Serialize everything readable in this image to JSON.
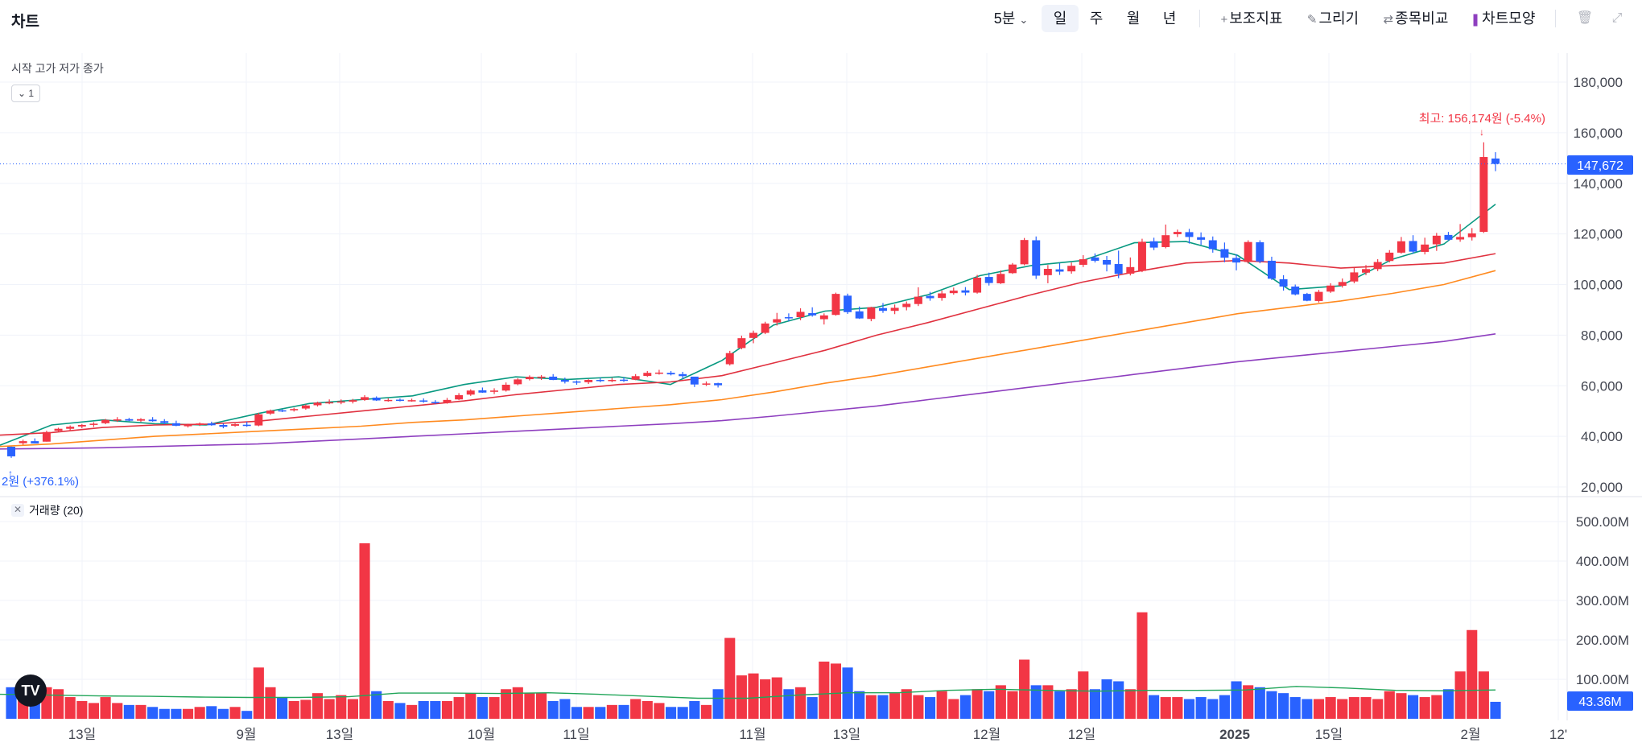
{
  "header": {
    "title": "차트",
    "interval": "5분",
    "periods": [
      "일",
      "주",
      "월",
      "년"
    ],
    "active_period": "일",
    "tools": [
      {
        "icon": "plus-icon",
        "label": "보조지표"
      },
      {
        "icon": "pencil-icon",
        "label": "그리기"
      },
      {
        "icon": "compare-icon",
        "label": "종목비교"
      },
      {
        "icon": "candle-icon",
        "label": "차트모양"
      }
    ],
    "icons": [
      "trash-icon",
      "expand-icon",
      "chevron-down-icon"
    ]
  },
  "legend": {
    "ohlc": "시작 고가 저가 종가",
    "collapse": "1",
    "volume": "거래량",
    "volume_param": "(20)"
  },
  "annotations": {
    "high": "최고: 156,174원 (-5.4%)",
    "low": "2원 (+376.1%)"
  },
  "price_axis": {
    "ticks": [
      "180,000",
      "160,000",
      "140,000",
      "120,000",
      "100,000",
      "80,000",
      "60,000",
      "40,000",
      "20,000"
    ],
    "current_label": "147,672"
  },
  "volume_axis": {
    "ticks": [
      "500.00M",
      "400.00M",
      "300.00M",
      "200.00M",
      "100.00M"
    ],
    "current_label": "43.36M"
  },
  "time_axis": {
    "labels": [
      "13일",
      "9월",
      "13일",
      "10월",
      "11일",
      "11월",
      "13일",
      "12월",
      "12일",
      "2025",
      "15일",
      "2월",
      "12'"
    ]
  },
  "colors": {
    "up": "#f23645",
    "down": "#2962ff",
    "ma5": "#089981",
    "ma20": "#e0313f",
    "ma60": "#ff8a1f",
    "ma120": "#8e3fbf",
    "volume_ma": "#22a65a",
    "accent": "#2962ff"
  },
  "chart_data": {
    "type": "candlestick",
    "y_range": [
      20000,
      190000
    ],
    "volume_range": [
      0,
      540
    ],
    "volume_units": "M",
    "candles": [
      [
        35900,
        36000,
        31500,
        32100,
        80
      ],
      [
        37300,
        38700,
        36700,
        38100,
        75
      ],
      [
        38100,
        39200,
        37200,
        37200,
        60
      ],
      [
        37900,
        42200,
        37900,
        41700,
        80
      ],
      [
        42200,
        43400,
        41900,
        43000,
        75
      ],
      [
        43000,
        44300,
        42100,
        43800,
        55
      ],
      [
        43900,
        44900,
        43200,
        44500,
        45
      ],
      [
        44600,
        45600,
        43700,
        45000,
        40
      ],
      [
        45200,
        46900,
        44800,
        46500,
        55
      ],
      [
        46400,
        47600,
        45700,
        46700,
        40
      ],
      [
        46800,
        47300,
        46000,
        46200,
        35
      ],
      [
        46200,
        47200,
        45700,
        46800,
        35
      ],
      [
        46600,
        47600,
        45800,
        46000,
        30
      ],
      [
        46000,
        46800,
        44800,
        45300,
        25
      ],
      [
        45200,
        46200,
        44000,
        44200,
        25
      ],
      [
        44000,
        45000,
        43500,
        44500,
        25
      ],
      [
        44500,
        45500,
        44100,
        45100,
        30
      ],
      [
        45100,
        45800,
        44200,
        44400,
        32
      ],
      [
        44500,
        45100,
        43200,
        43800,
        25
      ],
      [
        44200,
        45100,
        43800,
        44800,
        30
      ],
      [
        44600,
        45800,
        43800,
        44100,
        20
      ],
      [
        44300,
        49300,
        44000,
        48700,
        130
      ],
      [
        49000,
        50600,
        48500,
        50200,
        80
      ],
      [
        50300,
        50700,
        49600,
        50100,
        55
      ],
      [
        50300,
        51300,
        49800,
        50800,
        45
      ],
      [
        51000,
        52600,
        50500,
        52200,
        48
      ],
      [
        52300,
        53700,
        51800,
        53300,
        65
      ],
      [
        53300,
        54600,
        52700,
        53500,
        50
      ],
      [
        53600,
        54600,
        52700,
        53800,
        60
      ],
      [
        53700,
        54800,
        53000,
        54300,
        50
      ],
      [
        54400,
        56300,
        54000,
        55500,
        445
      ],
      [
        55300,
        55800,
        54000,
        54200,
        70
      ],
      [
        54200,
        55000,
        53700,
        54400,
        45
      ],
      [
        54500,
        55000,
        53800,
        54100,
        40
      ],
      [
        54300,
        54900,
        53700,
        54300,
        35
      ],
      [
        54200,
        55000,
        53300,
        53700,
        45
      ],
      [
        53600,
        54300,
        52800,
        53100,
        45
      ],
      [
        53200,
        55200,
        52900,
        54400,
        45
      ],
      [
        54600,
        57100,
        54300,
        56300,
        55
      ],
      [
        56500,
        58600,
        56000,
        58100,
        65
      ],
      [
        58200,
        59300,
        57200,
        57300,
        55
      ],
      [
        57600,
        59000,
        56700,
        58100,
        55
      ],
      [
        58100,
        61300,
        57700,
        60400,
        75
      ],
      [
        60600,
        63000,
        60200,
        62500,
        80
      ],
      [
        62600,
        64100,
        62100,
        63500,
        65
      ],
      [
        63400,
        64200,
        62300,
        63600,
        65
      ],
      [
        63600,
        64600,
        62200,
        62300,
        45
      ],
      [
        62300,
        63200,
        60900,
        61600,
        50
      ],
      [
        61700,
        62100,
        60400,
        61300,
        30
      ],
      [
        61400,
        62600,
        60700,
        62300,
        30
      ],
      [
        62300,
        63100,
        61400,
        62100,
        30
      ],
      [
        62300,
        63100,
        61400,
        62300,
        35
      ],
      [
        62400,
        63300,
        61500,
        62200,
        35
      ],
      [
        62400,
        64600,
        62200,
        63800,
        50
      ],
      [
        63900,
        65800,
        63500,
        65100,
        45
      ],
      [
        65100,
        66300,
        64400,
        65200,
        40
      ],
      [
        65100,
        65800,
        64100,
        64500,
        30
      ],
      [
        64600,
        65500,
        62700,
        63800,
        30
      ],
      [
        63600,
        62300,
        59500,
        60500,
        45
      ],
      [
        60600,
        61700,
        59900,
        60900,
        35
      ],
      [
        61000,
        61200,
        59300,
        60200,
        75
      ],
      [
        68500,
        73800,
        68000,
        72900,
        205
      ],
      [
        74900,
        79800,
        74400,
        78800,
        110
      ],
      [
        78900,
        81800,
        76800,
        80900,
        115
      ],
      [
        80900,
        85300,
        80400,
        84600,
        100
      ],
      [
        85000,
        88800,
        83800,
        86300,
        105
      ],
      [
        87100,
        88600,
        85500,
        87000,
        75
      ],
      [
        87100,
        90600,
        85900,
        89200,
        80
      ],
      [
        88700,
        91000,
        87300,
        87800,
        55
      ],
      [
        86300,
        88600,
        84200,
        87800,
        145
      ],
      [
        88000,
        96800,
        87700,
        96300,
        140
      ],
      [
        95600,
        96400,
        88400,
        89100,
        130
      ],
      [
        89400,
        91300,
        86400,
        86600,
        70
      ],
      [
        86400,
        91200,
        85500,
        91000,
        60
      ],
      [
        90700,
        92700,
        88800,
        89600,
        60
      ],
      [
        89600,
        92100,
        88300,
        90800,
        65
      ],
      [
        91100,
        93300,
        89800,
        92400,
        75
      ],
      [
        92300,
        98900,
        91500,
        95200,
        60
      ],
      [
        95500,
        97100,
        93600,
        94600,
        55
      ],
      [
        94700,
        97600,
        93600,
        96500,
        70
      ],
      [
        96600,
        98800,
        96000,
        97600,
        50
      ],
      [
        97700,
        99000,
        95700,
        96800,
        60
      ],
      [
        96800,
        103800,
        96400,
        102700,
        75
      ],
      [
        103000,
        104700,
        99600,
        100600,
        70
      ],
      [
        100500,
        105600,
        100200,
        104200,
        85
      ],
      [
        104500,
        108500,
        104200,
        107900,
        70
      ],
      [
        108000,
        118400,
        107600,
        117600,
        150
      ],
      [
        117500,
        119000,
        102200,
        103500,
        85
      ],
      [
        103700,
        107700,
        100500,
        106200,
        85
      ],
      [
        106000,
        108500,
        103800,
        105100,
        70
      ],
      [
        105200,
        108700,
        104300,
        107400,
        75
      ],
      [
        107800,
        111600,
        106900,
        110000,
        120
      ],
      [
        110700,
        112300,
        108700,
        109400,
        75
      ],
      [
        109700,
        111300,
        105200,
        107900,
        100
      ],
      [
        108100,
        113400,
        102500,
        104200,
        95
      ],
      [
        104300,
        110700,
        103600,
        106900,
        75
      ],
      [
        105400,
        118100,
        104900,
        116900,
        270
      ],
      [
        117100,
        118500,
        113600,
        114600,
        60
      ],
      [
        114800,
        123700,
        114300,
        119500,
        55
      ],
      [
        119900,
        121700,
        118800,
        120800,
        55
      ],
      [
        120700,
        122000,
        116200,
        118800,
        50
      ],
      [
        118700,
        120600,
        115700,
        117700,
        55
      ],
      [
        117500,
        119000,
        112600,
        114000,
        50
      ],
      [
        114000,
        116600,
        108800,
        110600,
        60
      ],
      [
        110500,
        112000,
        105600,
        108700,
        95
      ],
      [
        108900,
        117500,
        108300,
        116800,
        85
      ],
      [
        116700,
        117500,
        108400,
        109100,
        80
      ],
      [
        109400,
        111000,
        101800,
        102300,
        70
      ],
      [
        102100,
        103700,
        97600,
        99200,
        65
      ],
      [
        99200,
        100000,
        95700,
        96100,
        55
      ],
      [
        96300,
        96700,
        93400,
        93600,
        50
      ],
      [
        93500,
        97900,
        92900,
        97100,
        50
      ],
      [
        97200,
        100500,
        96700,
        99600,
        55
      ],
      [
        99500,
        102400,
        98800,
        101000,
        50
      ],
      [
        101200,
        106600,
        100500,
        104800,
        55
      ],
      [
        104700,
        107700,
        103700,
        106100,
        55
      ],
      [
        106100,
        110000,
        105300,
        108900,
        50
      ],
      [
        109300,
        113600,
        108800,
        112600,
        70
      ],
      [
        112600,
        118800,
        112200,
        117100,
        65
      ],
      [
        117200,
        119500,
        112200,
        113000,
        60
      ],
      [
        112900,
        118500,
        111900,
        115800,
        55
      ],
      [
        115900,
        120400,
        113300,
        119300,
        60
      ],
      [
        119600,
        120800,
        117300,
        117700,
        75
      ],
      [
        117800,
        123900,
        116900,
        118800,
        120
      ],
      [
        118700,
        122300,
        117400,
        120200,
        225
      ],
      [
        120800,
        156200,
        120400,
        150400,
        120
      ],
      [
        149800,
        152300,
        144800,
        147672,
        43
      ]
    ],
    "moving_averages": [
      {
        "period": 5,
        "y": [
          36500,
          44500,
          46500,
          45000,
          44500,
          49000,
          53000,
          54500,
          56000,
          60500,
          63500,
          62500,
          63500,
          60500,
          70000,
          84000,
          89500,
          91000,
          96000,
          103500,
          107500,
          109500,
          116500,
          117000,
          111500,
          98000,
          99500,
          110000,
          116000,
          131700
        ]
      },
      {
        "period": 20,
        "y": [
          40500,
          41500,
          43500,
          44500,
          44800,
          46000,
          48000,
          50000,
          52000,
          54000,
          56500,
          58500,
          60500,
          61500,
          64000,
          69000,
          74000,
          80000,
          85000,
          90500,
          96000,
          101000,
          105000,
          108500,
          109500,
          108500,
          106500,
          107500,
          108500,
          112200
        ]
      },
      {
        "period": 60,
        "y": [
          36000,
          37000,
          38500,
          40000,
          41000,
          42000,
          43000,
          44000,
          45500,
          46500,
          48000,
          49500,
          51000,
          52500,
          54500,
          57500,
          61000,
          64000,
          67500,
          71000,
          74500,
          78000,
          81500,
          85000,
          88500,
          91000,
          93500,
          96500,
          100000,
          105500
        ]
      },
      {
        "period": 120,
        "y": [
          35000,
          35200,
          35500,
          36000,
          36500,
          37000,
          38000,
          39000,
          40000,
          41000,
          42000,
          43000,
          44000,
          45000,
          46200,
          48000,
          50000,
          52000,
          54500,
          57000,
          59500,
          62000,
          64500,
          67000,
          69500,
          71500,
          73500,
          75500,
          77500,
          80500
        ]
      }
    ],
    "volume_ma": {
      "period": 20,
      "y": [
        62,
        60,
        58,
        57,
        55,
        54,
        54,
        56,
        65,
        65,
        64,
        66,
        62,
        57,
        52,
        52,
        60,
        66,
        66,
        72,
        75,
        72,
        70,
        72,
        72,
        73,
        82,
        78,
        72,
        71,
        73
      ]
    }
  }
}
